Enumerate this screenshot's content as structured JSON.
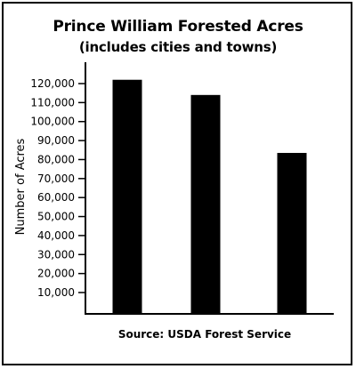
{
  "chart_data": {
    "type": "bar",
    "title": "Prince William Forested Acres",
    "subtitle": "(includes cities and towns)",
    "ylabel": "Number of Acres",
    "xlabel": "",
    "source": "Source: USDA Forest Service",
    "categories": [
      "",
      "",
      ""
    ],
    "values": [
      122000,
      114000,
      83500
    ],
    "ylim": [
      0,
      130000
    ],
    "yticks": [
      10000,
      20000,
      30000,
      40000,
      50000,
      60000,
      70000,
      80000,
      90000,
      100000,
      110000,
      120000
    ],
    "ytick_labels": [
      "10,000",
      "20,000",
      "30,000",
      "40,000",
      "50,000",
      "60,000",
      "70,000",
      "80,000",
      "90,000",
      "100,000",
      "110,000",
      "120,000"
    ],
    "grid": false,
    "bar_color": "#000000"
  }
}
